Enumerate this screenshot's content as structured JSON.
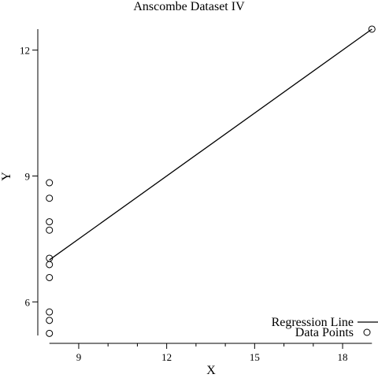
{
  "chart_data": {
    "type": "scatter",
    "title": "Anscombe Dataset IV",
    "xlabel": "X",
    "ylabel": "Y",
    "xlim": [
      7.9,
      19.1
    ],
    "ylim": [
      5.2,
      12.8
    ],
    "xticks": [
      9,
      12,
      15,
      18
    ],
    "yticks": [
      6,
      9,
      12
    ],
    "x_minor_ticks": [
      10,
      11,
      13,
      14,
      16,
      17
    ],
    "series": [
      {
        "name": "Data Points",
        "marker": "open-circle",
        "points": [
          {
            "x": 8,
            "y": 6.58
          },
          {
            "x": 8,
            "y": 5.76
          },
          {
            "x": 8,
            "y": 7.71
          },
          {
            "x": 8,
            "y": 8.84
          },
          {
            "x": 8,
            "y": 8.47
          },
          {
            "x": 8,
            "y": 7.04
          },
          {
            "x": 8,
            "y": 5.25
          },
          {
            "x": 19,
            "y": 12.5
          },
          {
            "x": 8,
            "y": 5.56
          },
          {
            "x": 8,
            "y": 7.91
          },
          {
            "x": 8,
            "y": 6.89
          }
        ]
      },
      {
        "name": "Regression Line",
        "marker": "line",
        "points": [
          {
            "x": 8,
            "y": 7.0
          },
          {
            "x": 19,
            "y": 12.5
          }
        ]
      }
    ],
    "legend": {
      "position": "bottom-right",
      "entries": [
        "Regression Line",
        "Data Points"
      ]
    },
    "grid": false
  }
}
